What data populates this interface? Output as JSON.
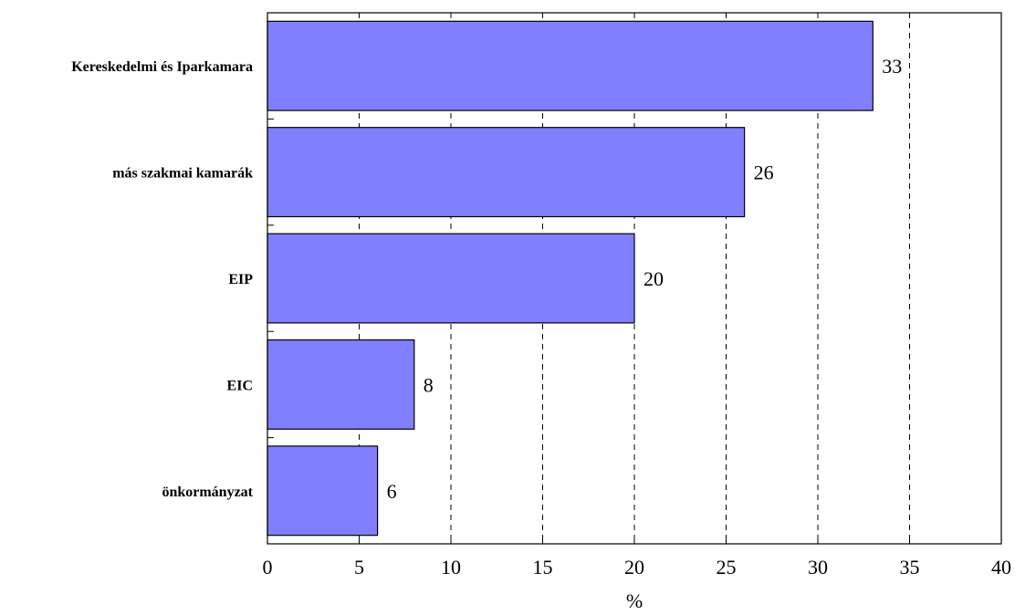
{
  "chart_data": {
    "type": "bar",
    "orientation": "horizontal",
    "categories": [
      "Kereskedelmi és Iparkamara",
      "más szakmai kamarák",
      "EIP",
      "EIC",
      "önkormányzat"
    ],
    "values": [
      33,
      26,
      20,
      8,
      6
    ],
    "xlabel": "%",
    "ylabel": "",
    "xlim": [
      0,
      40
    ],
    "xticks": [
      "0",
      "5",
      "10",
      "15",
      "20",
      "25",
      "30",
      "35",
      "40"
    ],
    "grid": "vertical dashed",
    "bar_color": "#8080ff",
    "data_labels": [
      "33",
      "26",
      "20",
      "8",
      "6"
    ]
  }
}
